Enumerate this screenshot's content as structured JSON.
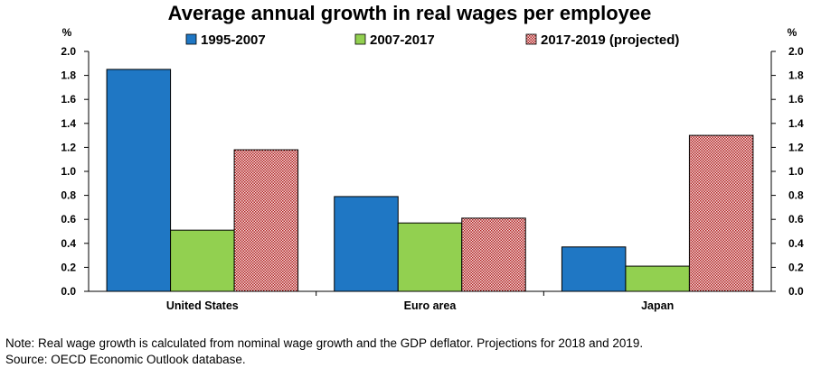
{
  "chart_data": {
    "type": "bar",
    "title": "Average annual growth in real wages per employee",
    "unit_left": "%",
    "unit_right": "%",
    "categories": [
      "United States",
      "Euro area",
      "Japan"
    ],
    "series": [
      {
        "name": "1995-2007",
        "values": [
          1.85,
          0.79,
          0.37
        ],
        "color": "#1f77c4",
        "pattern": "solid"
      },
      {
        "name": "2007-2017",
        "values": [
          0.51,
          0.57,
          0.21
        ],
        "color": "#92d050",
        "pattern": "solid"
      },
      {
        "name": "2017-2019 (projected)",
        "values": [
          1.18,
          0.61,
          1.3
        ],
        "color": "#b22222",
        "pattern": "checkered"
      }
    ],
    "ylim": [
      0,
      2.0
    ],
    "yticks": [
      "0.0",
      "0.2",
      "0.4",
      "0.6",
      "0.8",
      "1.0",
      "1.2",
      "1.4",
      "1.6",
      "1.8",
      "2.0"
    ],
    "grid": false,
    "legend_position": "top"
  },
  "notes": {
    "note": "Note: Real wage growth is calculated from nominal wage growth and the GDP deflator. Projections for 2018 and 2019.",
    "source": "Source: OECD Economic Outlook database."
  }
}
